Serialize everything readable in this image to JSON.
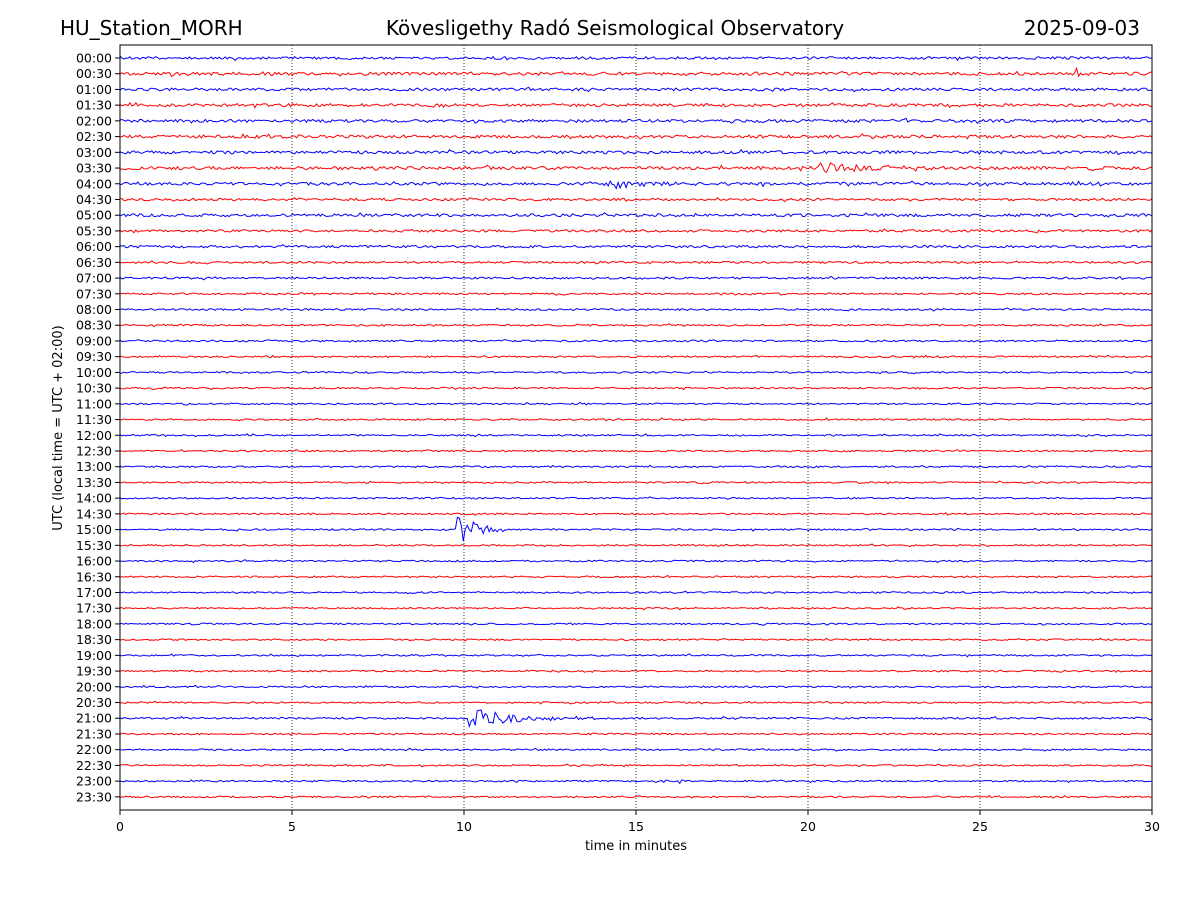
{
  "header": {
    "station": "HU_Station_MORH",
    "observatory": "Kövesligethy Radó Seismological Observatory",
    "date": "2025-09-03"
  },
  "chart_data": {
    "type": "line",
    "title": "Kövesligethy Radó Seismological Observatory",
    "xlabel": "time in minutes",
    "ylabel": "UTC (local time = UTC + 02:00)",
    "xlim": [
      0,
      30
    ],
    "x_ticks": [
      "0",
      "5",
      "10",
      "15",
      "20",
      "25",
      "30"
    ],
    "grid": "vertical dotted",
    "trace_colors": [
      "#0000ff",
      "#ff0000"
    ],
    "rows": [
      {
        "label": "00:00",
        "amp": 1.3,
        "events": []
      },
      {
        "label": "00:30",
        "amp": 1.6,
        "events": [
          {
            "t": 27.8,
            "a": 7,
            "d": 0.6
          }
        ]
      },
      {
        "label": "01:00",
        "amp": 1.4,
        "events": []
      },
      {
        "label": "01:30",
        "amp": 1.5,
        "events": []
      },
      {
        "label": "02:00",
        "amp": 1.5,
        "events": []
      },
      {
        "label": "02:30",
        "amp": 1.5,
        "events": []
      },
      {
        "label": "03:00",
        "amp": 1.5,
        "events": []
      },
      {
        "label": "03:30",
        "amp": 1.6,
        "events": [
          {
            "t": 20.3,
            "a": 9,
            "d": 3.2
          }
        ]
      },
      {
        "label": "04:00",
        "amp": 1.5,
        "events": [
          {
            "t": 14.1,
            "a": 6,
            "d": 3
          }
        ]
      },
      {
        "label": "04:30",
        "amp": 1.2,
        "events": []
      },
      {
        "label": "05:00",
        "amp": 1.4,
        "events": []
      },
      {
        "label": "05:30",
        "amp": 1.2,
        "events": []
      },
      {
        "label": "06:00",
        "amp": 1.2,
        "events": []
      },
      {
        "label": "06:30",
        "amp": 1.0,
        "events": []
      },
      {
        "label": "07:00",
        "amp": 1.0,
        "events": []
      },
      {
        "label": "07:30",
        "amp": 0.9,
        "events": []
      },
      {
        "label": "08:00",
        "amp": 0.9,
        "events": []
      },
      {
        "label": "08:30",
        "amp": 0.9,
        "events": []
      },
      {
        "label": "09:00",
        "amp": 0.9,
        "events": []
      },
      {
        "label": "09:30",
        "amp": 0.8,
        "events": []
      },
      {
        "label": "10:00",
        "amp": 0.8,
        "events": []
      },
      {
        "label": "10:30",
        "amp": 0.8,
        "events": []
      },
      {
        "label": "11:00",
        "amp": 0.8,
        "events": []
      },
      {
        "label": "11:30",
        "amp": 0.8,
        "events": []
      },
      {
        "label": "12:00",
        "amp": 0.8,
        "events": []
      },
      {
        "label": "12:30",
        "amp": 0.8,
        "events": []
      },
      {
        "label": "13:00",
        "amp": 0.8,
        "events": []
      },
      {
        "label": "13:30",
        "amp": 0.8,
        "events": []
      },
      {
        "label": "14:00",
        "amp": 0.8,
        "events": [
          {
            "t": 4.3,
            "a": 3,
            "d": 0.4
          }
        ]
      },
      {
        "label": "14:30",
        "amp": 0.8,
        "events": []
      },
      {
        "label": "15:00",
        "amp": 0.8,
        "events": [
          {
            "t": 9.85,
            "a": 17,
            "d": 1.5
          }
        ]
      },
      {
        "label": "15:30",
        "amp": 0.8,
        "events": []
      },
      {
        "label": "16:00",
        "amp": 0.8,
        "events": []
      },
      {
        "label": "16:30",
        "amp": 0.8,
        "events": []
      },
      {
        "label": "17:00",
        "amp": 0.8,
        "events": []
      },
      {
        "label": "17:30",
        "amp": 0.8,
        "events": []
      },
      {
        "label": "18:00",
        "amp": 0.8,
        "events": []
      },
      {
        "label": "18:30",
        "amp": 0.8,
        "events": []
      },
      {
        "label": "19:00",
        "amp": 0.8,
        "events": []
      },
      {
        "label": "19:30",
        "amp": 0.8,
        "events": []
      },
      {
        "label": "20:00",
        "amp": 0.8,
        "events": []
      },
      {
        "label": "20:30",
        "amp": 0.8,
        "events": []
      },
      {
        "label": "21:00",
        "amp": 0.9,
        "events": [
          {
            "t": 10.1,
            "a": 11,
            "d": 4
          }
        ]
      },
      {
        "label": "21:30",
        "amp": 0.8,
        "events": []
      },
      {
        "label": "22:00",
        "amp": 0.8,
        "events": []
      },
      {
        "label": "22:30",
        "amp": 0.8,
        "events": []
      },
      {
        "label": "23:00",
        "amp": 0.8,
        "events": [
          {
            "t": 16.3,
            "a": 2,
            "d": 0.6
          }
        ]
      },
      {
        "label": "23:30",
        "amp": 0.8,
        "events": []
      }
    ]
  }
}
